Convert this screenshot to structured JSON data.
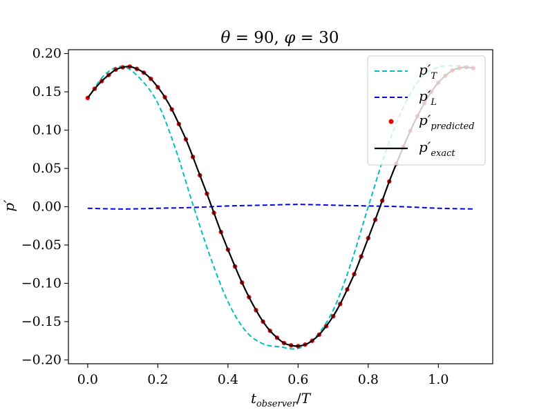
{
  "chart_data": {
    "type": "line",
    "title": "θ = 90, φ = 30",
    "xlabel": "t_observer/T",
    "ylabel": "p′",
    "xlim": [
      -0.055,
      1.155
    ],
    "ylim": [
      -0.205,
      0.205
    ],
    "xticks": [
      0.0,
      0.2,
      0.4,
      0.6,
      0.8,
      1.0
    ],
    "xtick_labels": [
      "0.0",
      "0.2",
      "0.4",
      "0.6",
      "0.8",
      "1.0"
    ],
    "yticks": [
      0.2,
      0.15,
      0.1,
      0.05,
      0.0,
      -0.05,
      -0.1,
      -0.15,
      -0.2
    ],
    "ytick_labels": [
      "0.20",
      "0.15",
      "0.10",
      "0.05",
      "0.00",
      "−0.05",
      "−0.10",
      "−0.15",
      "−0.20"
    ],
    "grid": false,
    "legend_position": "top-right",
    "series": [
      {
        "name": "p′_T",
        "style": "dashed",
        "color": "#00bfbf",
        "x": [
          0.0,
          0.05,
          0.1,
          0.15,
          0.2,
          0.25,
          0.3,
          0.35,
          0.4,
          0.45,
          0.5,
          0.55,
          0.6,
          0.65,
          0.7,
          0.75,
          0.8,
          0.85,
          0.9,
          0.95,
          1.0,
          1.05,
          1.1
        ],
        "y": [
          0.142,
          0.173,
          0.183,
          0.167,
          0.135,
          0.076,
          0.003,
          -0.066,
          -0.124,
          -0.162,
          -0.179,
          -0.183,
          -0.185,
          -0.17,
          -0.135,
          -0.075,
          0.0,
          0.072,
          0.13,
          0.168,
          0.182,
          0.184,
          0.183
        ]
      },
      {
        "name": "p′_L",
        "style": "dashed",
        "color": "#0000ee",
        "x": [
          0.0,
          0.1,
          0.2,
          0.3,
          0.4,
          0.5,
          0.6,
          0.7,
          0.8,
          0.9,
          1.0,
          1.1
        ],
        "y": [
          -0.002,
          -0.003,
          -0.002,
          -0.001,
          0.001,
          0.002,
          0.003,
          0.002,
          0.001,
          0.0,
          -0.002,
          -0.003
        ]
      },
      {
        "name": "p′_predicted",
        "style": "markers",
        "color": "#ee0000",
        "x": [
          0.0,
          0.02,
          0.04,
          0.06,
          0.08,
          0.1,
          0.12,
          0.14,
          0.16,
          0.18,
          0.2,
          0.22,
          0.24,
          0.26,
          0.28,
          0.3,
          0.32,
          0.34,
          0.36,
          0.38,
          0.4,
          0.42,
          0.44,
          0.46,
          0.48,
          0.5,
          0.52,
          0.54,
          0.56,
          0.58,
          0.6,
          0.62,
          0.64,
          0.66,
          0.68,
          0.7,
          0.72,
          0.74,
          0.76,
          0.78,
          0.8,
          0.82,
          0.84,
          0.86,
          0.88,
          0.9,
          0.92,
          0.94,
          0.96,
          0.98,
          1.0,
          1.02,
          1.04,
          1.06,
          1.08,
          1.1
        ],
        "y": [
          0.142,
          0.154,
          0.164,
          0.172,
          0.179,
          0.182,
          0.183,
          0.18,
          0.175,
          0.167,
          0.156,
          0.143,
          0.127,
          0.108,
          0.088,
          0.065,
          0.041,
          0.017,
          -0.008,
          -0.033,
          -0.056,
          -0.078,
          -0.099,
          -0.118,
          -0.135,
          -0.15,
          -0.162,
          -0.171,
          -0.178,
          -0.181,
          -0.182,
          -0.18,
          -0.175,
          -0.167,
          -0.156,
          -0.143,
          -0.127,
          -0.108,
          -0.088,
          -0.065,
          -0.041,
          -0.017,
          0.008,
          0.033,
          0.056,
          0.078,
          0.099,
          0.118,
          0.135,
          0.15,
          0.162,
          0.171,
          0.178,
          0.181,
          0.182,
          0.181
        ]
      },
      {
        "name": "p′_exact",
        "style": "solid",
        "color": "#000000",
        "x": [
          0.0,
          0.02,
          0.04,
          0.06,
          0.08,
          0.1,
          0.12,
          0.14,
          0.16,
          0.18,
          0.2,
          0.22,
          0.24,
          0.26,
          0.28,
          0.3,
          0.32,
          0.34,
          0.36,
          0.38,
          0.4,
          0.42,
          0.44,
          0.46,
          0.48,
          0.5,
          0.52,
          0.54,
          0.56,
          0.58,
          0.6,
          0.62,
          0.64,
          0.66,
          0.68,
          0.7,
          0.72,
          0.74,
          0.76,
          0.78,
          0.8,
          0.82,
          0.84,
          0.86,
          0.88,
          0.9,
          0.92,
          0.94,
          0.96,
          0.98,
          1.0,
          1.02,
          1.04,
          1.06,
          1.08,
          1.1
        ],
        "y": [
          0.142,
          0.154,
          0.164,
          0.172,
          0.179,
          0.182,
          0.183,
          0.18,
          0.175,
          0.167,
          0.156,
          0.143,
          0.127,
          0.108,
          0.088,
          0.065,
          0.041,
          0.017,
          -0.008,
          -0.033,
          -0.056,
          -0.078,
          -0.099,
          -0.118,
          -0.135,
          -0.15,
          -0.162,
          -0.171,
          -0.178,
          -0.181,
          -0.182,
          -0.18,
          -0.175,
          -0.167,
          -0.156,
          -0.143,
          -0.127,
          -0.108,
          -0.088,
          -0.065,
          -0.041,
          -0.017,
          0.008,
          0.033,
          0.056,
          0.078,
          0.099,
          0.118,
          0.135,
          0.15,
          0.162,
          0.171,
          0.178,
          0.181,
          0.182,
          0.181
        ]
      }
    ]
  }
}
